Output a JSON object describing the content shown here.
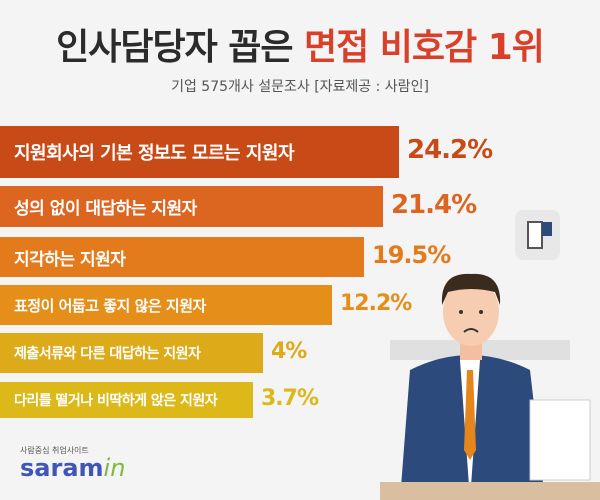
{
  "title": {
    "main": "인사담당자 꼽은",
    "highlight": "면접 비호감 1위"
  },
  "subtitle": "기업 575개사 설문조사  [자료제공 : 사람인]",
  "logo": {
    "tagline": "사람중심 취업사이트",
    "name": "saram",
    "suffix": "in"
  },
  "chart_data": {
    "type": "bar",
    "orientation": "horizontal",
    "title": "인사담당자 꼽은 면접 비호감 1위",
    "categories": [
      "지원회사의 기본 정보도 모르는 지원자",
      "성의 없이 대답하는 지원자",
      "지각하는 지원자",
      "표정이 어둡고 좋지 않은 지원자",
      "제출서류와 다른 대답하는 지원자",
      "다리를 떨거나 비딱하게 앉은 지원자"
    ],
    "values": [
      24.2,
      21.4,
      19.5,
      12.2,
      4,
      3.7
    ],
    "labels": [
      "24.2%",
      "21.4%",
      "19.5%",
      "12.2%",
      "4%",
      "3.7%"
    ],
    "unit": "%",
    "colors": [
      "#c84a16",
      "#dc6520",
      "#e37a1c",
      "#e58e1a",
      "#ddaa1a",
      "#dcb818"
    ]
  }
}
